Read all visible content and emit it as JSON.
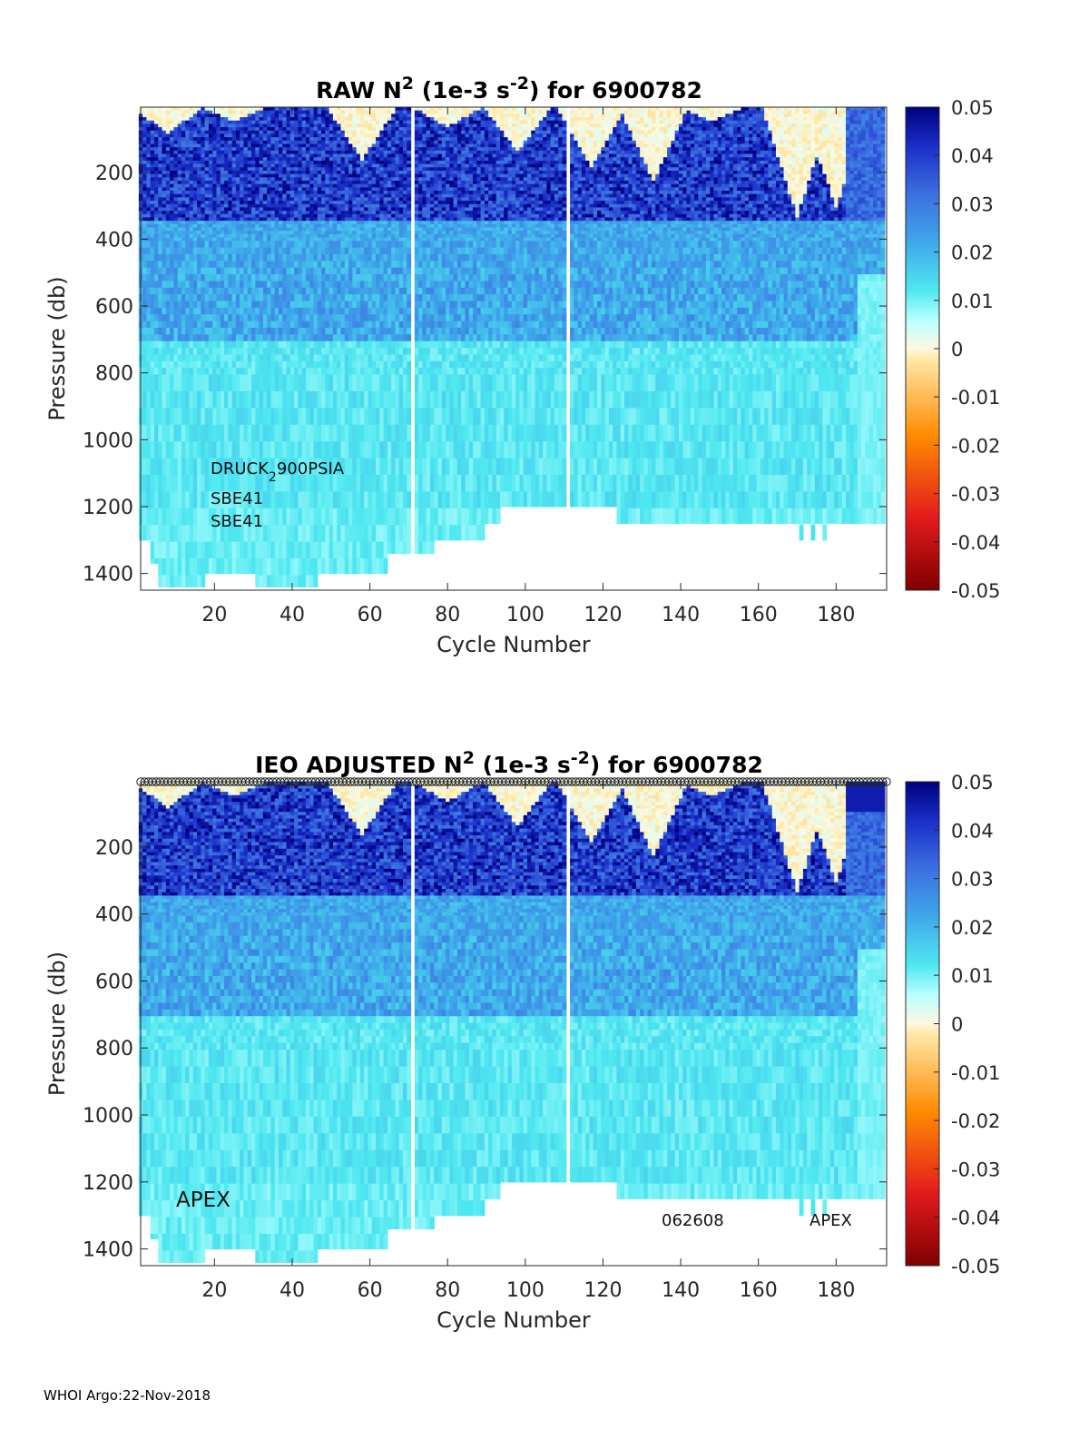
{
  "footer": "WHOI Argo:22-Nov-2018",
  "chart_data": [
    {
      "type": "heatmap",
      "title": "RAW N² (1e-3 s⁻²) for 6900782",
      "title_parts": [
        "RAW N",
        "2",
        " (1e-3 s",
        "-2",
        ") for 6900782"
      ],
      "xlabel": "Cycle Number",
      "ylabel": "Pressure (db)",
      "xlim": [
        1,
        193
      ],
      "ylim": [
        1450,
        5
      ],
      "y_reversed": true,
      "xticks": [
        20,
        40,
        60,
        80,
        100,
        120,
        140,
        160,
        180
      ],
      "yticks": [
        200,
        400,
        600,
        800,
        1000,
        1200,
        1400
      ],
      "colorbar": {
        "range": [
          -0.05,
          0.05
        ],
        "ticks": [
          "0.05",
          "0.04",
          "0.03",
          "0.02",
          "0.01",
          "0",
          "-0.01",
          "-0.02",
          "-0.03",
          "-0.04",
          "-0.05"
        ],
        "colormap": [
          "#7f0000",
          "#e31a1c",
          "#ff8c00",
          "#fff5cc",
          "#7fffff",
          "#4682e6",
          "#00007f"
        ]
      },
      "value_bands": [
        {
          "pressure": [
            5,
            350
          ],
          "typical_value": 0.04
        },
        {
          "pressure": [
            350,
            450
          ],
          "typical_value": 0.022
        },
        {
          "pressure": [
            450,
            700
          ],
          "typical_value": 0.02
        },
        {
          "pressure": [
            700,
            1450
          ],
          "typical_value": 0.011
        }
      ],
      "annotations": [
        {
          "text": "DRUCK",
          "sub": "2",
          "text2": "900PSIA"
        },
        {
          "text": "SBE41"
        },
        {
          "text": "SBE41"
        }
      ]
    },
    {
      "type": "heatmap",
      "title": "IEO ADJUSTED N² (1e-3 s⁻²) for 6900782",
      "title_parts": [
        "IEO  ADJUSTED N",
        "2",
        " (1e-3 s",
        "-2",
        ") for 6900782"
      ],
      "xlabel": "Cycle Number",
      "ylabel": "Pressure (db)",
      "xlim": [
        1,
        193
      ],
      "ylim": [
        1450,
        5
      ],
      "y_reversed": true,
      "xticks": [
        20,
        40,
        60,
        80,
        100,
        120,
        140,
        160,
        180
      ],
      "yticks": [
        200,
        400,
        600,
        800,
        1000,
        1200,
        1400
      ],
      "colorbar": {
        "range": [
          -0.05,
          0.05
        ],
        "ticks": [
          "0.05",
          "0.04",
          "0.03",
          "0.02",
          "0.01",
          "0",
          "-0.01",
          "-0.02",
          "-0.03",
          "-0.04",
          "-0.05"
        ],
        "colormap": [
          "#7f0000",
          "#e31a1c",
          "#ff8c00",
          "#fff5cc",
          "#7fffff",
          "#4682e6",
          "#00007f"
        ]
      },
      "top_markers": "circle per cycle",
      "annotations": [
        {
          "text": "APEX"
        },
        {
          "text": "062608"
        },
        {
          "text": "APEX"
        }
      ]
    }
  ]
}
